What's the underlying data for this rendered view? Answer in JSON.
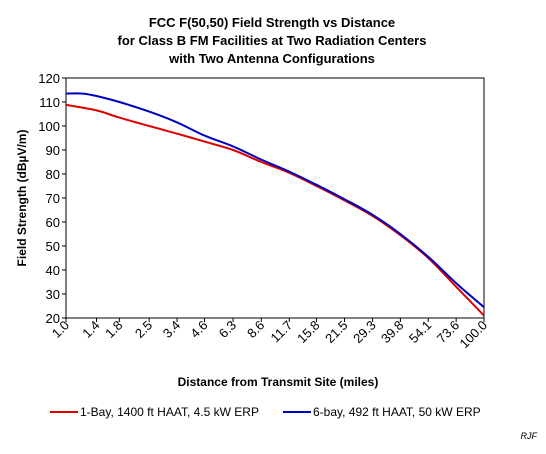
{
  "chart_data": {
    "type": "line",
    "title_lines": [
      "FCC F(50,50) Field Strength vs Distance",
      "for Class B FM Facilities at Two Radiation Centers",
      "with Two Antenna Configurations"
    ],
    "xlabel": "Distance from Transmit Site (miles)",
    "ylabel": "Field Strength (dBµV/m)",
    "x_scale": "log",
    "x_ticks": [
      "1.0",
      "1.4",
      "1.8",
      "2.5",
      "3.4",
      "4.6",
      "6.3",
      "8.6",
      "11.7",
      "15.8",
      "21.5",
      "29.3",
      "39.8",
      "54.1",
      "73.6",
      "100.0"
    ],
    "ylim": [
      20,
      120
    ],
    "y_ticks": [
      20,
      30,
      40,
      50,
      60,
      70,
      80,
      90,
      100,
      110,
      120
    ],
    "grid": false,
    "legend_position": "bottom",
    "series": [
      {
        "name": "1-Bay, 1400 ft HAAT, 4.5 kW ERP",
        "color": "#e00000",
        "x": [
          1.0,
          1.4,
          1.8,
          2.5,
          3.4,
          4.6,
          6.3,
          8.6,
          11.7,
          15.8,
          21.5,
          29.3,
          39.8,
          54.1,
          73.6,
          100.0
        ],
        "y": [
          108.8,
          106.5,
          103.5,
          100.0,
          96.8,
          93.5,
          90.0,
          85.0,
          80.5,
          75.0,
          69.0,
          62.5,
          54.5,
          45.0,
          33.0,
          21.0
        ]
      },
      {
        "name": "6-bay, 492 ft HAAT, 50 kW ERP",
        "color": "#0000c0",
        "x": [
          1.0,
          1.2,
          1.4,
          1.8,
          2.5,
          3.4,
          4.6,
          6.3,
          8.6,
          11.7,
          15.8,
          21.5,
          29.3,
          39.8,
          54.1,
          73.6,
          100.0
        ],
        "y": [
          113.5,
          113.5,
          112.5,
          110.0,
          106.0,
          101.5,
          96.0,
          91.5,
          86.0,
          81.0,
          75.5,
          69.5,
          63.0,
          55.0,
          45.5,
          34.5,
          24.5
        ]
      }
    ]
  },
  "credit": "RJF"
}
